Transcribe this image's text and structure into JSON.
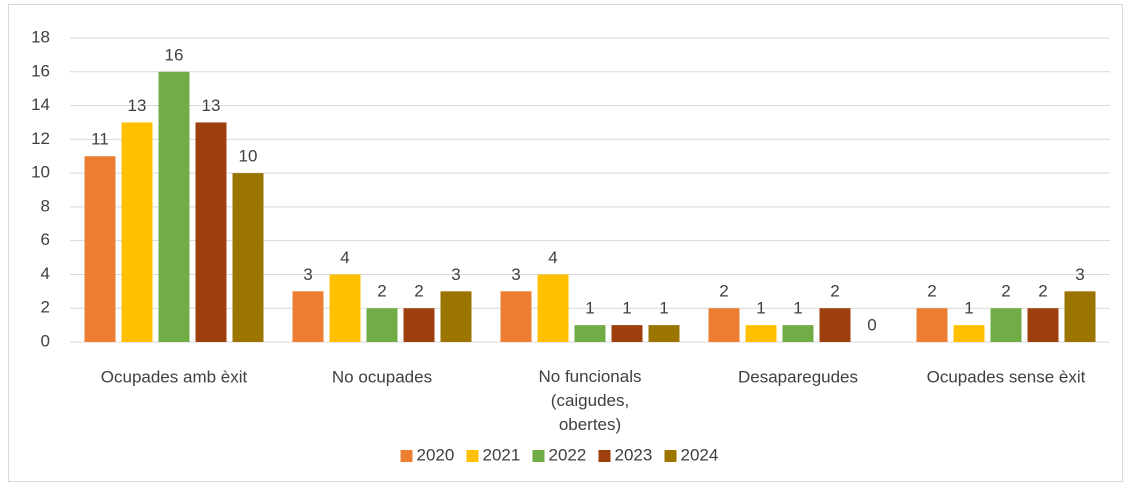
{
  "chart_data": {
    "type": "bar",
    "categories": [
      "Ocupades amb èxit",
      "No ocupades",
      "No funcionals (caigudes, obertes)",
      "Desaparegudes",
      "Ocupades sense èxit"
    ],
    "series": [
      {
        "name": "2020",
        "color": "#ed7d31",
        "values": [
          11,
          3,
          3,
          2,
          2
        ]
      },
      {
        "name": "2021",
        "color": "#ffc000",
        "values": [
          13,
          4,
          4,
          1,
          1
        ]
      },
      {
        "name": "2022",
        "color": "#70ad47",
        "values": [
          16,
          2,
          1,
          1,
          2
        ]
      },
      {
        "name": "2023",
        "color": "#9e3f0e",
        "values": [
          13,
          2,
          1,
          2,
          2
        ]
      },
      {
        "name": "2024",
        "color": "#9c7400",
        "values": [
          10,
          3,
          1,
          0,
          3
        ]
      }
    ],
    "ylim": [
      0,
      18
    ],
    "yticks": [
      0,
      2,
      4,
      6,
      8,
      10,
      12,
      14,
      16,
      18
    ],
    "grid": true,
    "legend": "bottom"
  }
}
